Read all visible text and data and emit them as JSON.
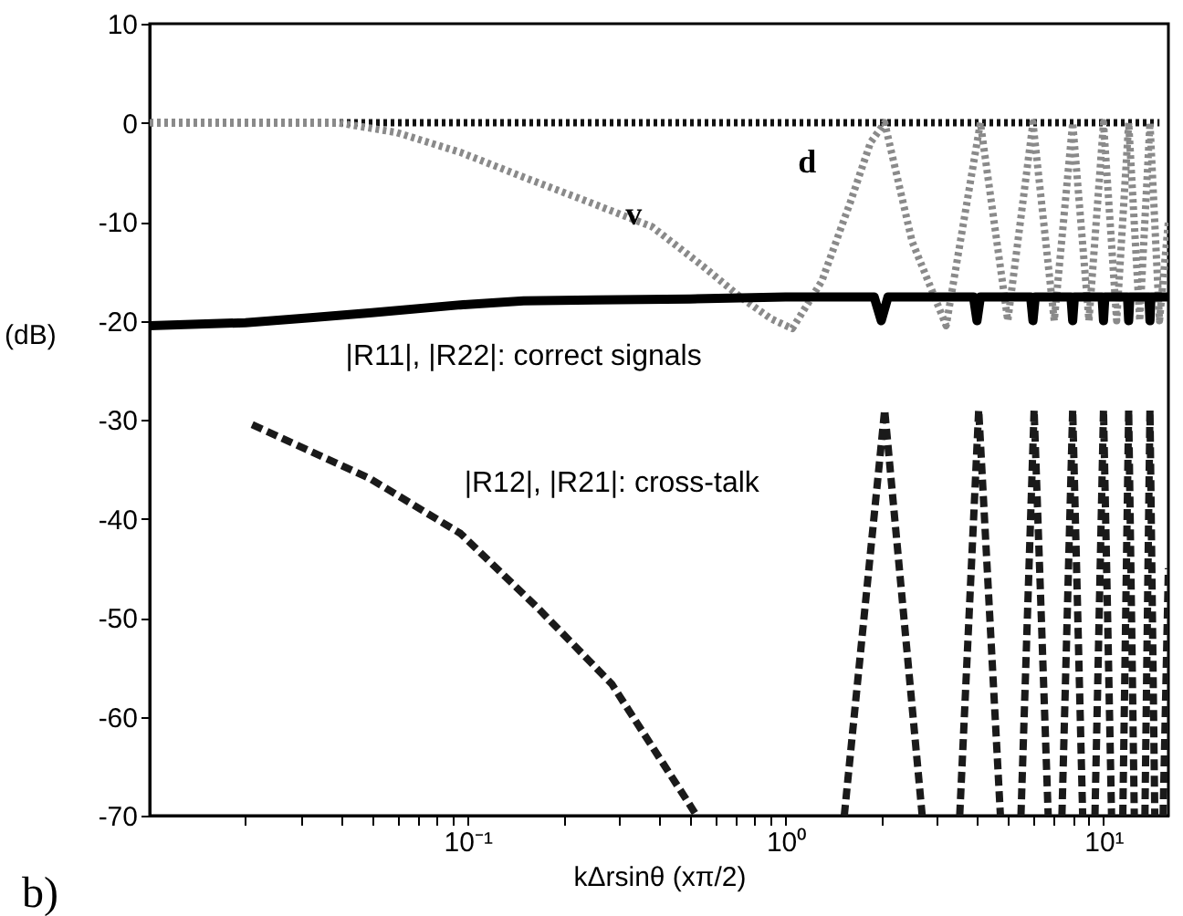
{
  "chart_data": {
    "type": "line",
    "xlabel": "kΔrsinθ (xπ/2)",
    "ylabel": "(dB)",
    "log": "x",
    "grid": false,
    "marker": "none",
    "xlim": [
      0.01,
      16
    ],
    "ylim": [
      -70,
      10
    ],
    "xticks": [
      {
        "value": 0.02,
        "label": null
      },
      {
        "value": 0.03,
        "label": null
      },
      {
        "value": 0.04,
        "label": null
      },
      {
        "value": 0.05,
        "label": null
      },
      {
        "value": 0.06,
        "label": null
      },
      {
        "value": 0.07,
        "label": null
      },
      {
        "value": 0.08,
        "label": null
      },
      {
        "value": 0.09,
        "label": null
      },
      {
        "value": 0.1,
        "label": "10⁻¹"
      },
      {
        "value": 0.2,
        "label": null
      },
      {
        "value": 0.3,
        "label": null
      },
      {
        "value": 0.4,
        "label": null
      },
      {
        "value": 0.5,
        "label": null
      },
      {
        "value": 0.6,
        "label": null
      },
      {
        "value": 0.7,
        "label": null
      },
      {
        "value": 0.8,
        "label": null
      },
      {
        "value": 0.9,
        "label": null
      },
      {
        "value": 1,
        "label": "10⁰"
      },
      {
        "value": 2,
        "label": null
      },
      {
        "value": 3,
        "label": null
      },
      {
        "value": 4,
        "label": null
      },
      {
        "value": 5,
        "label": null
      },
      {
        "value": 6,
        "label": null
      },
      {
        "value": 7,
        "label": null
      },
      {
        "value": 8,
        "label": null
      },
      {
        "value": 9,
        "label": null
      },
      {
        "value": 10,
        "label": "10¹"
      }
    ],
    "yticks": [
      -70,
      -60,
      -50,
      -40,
      -30,
      -20,
      -10,
      0,
      10
    ],
    "series": [
      {
        "name": "d",
        "color": "#111111",
        "line_style": "dotted",
        "x": [
          0.01,
          0.1,
          1,
          1.17,
          15
        ],
        "values": [
          0,
          0,
          0,
          0,
          0
        ]
      },
      {
        "name": "v",
        "color": "#8a8a8a",
        "line_style": "dotted",
        "x": [
          0.01,
          0.039,
          0.06,
          0.095,
          0.15,
          0.24,
          0.38,
          0.55,
          0.72,
          0.9,
          1.05,
          1.3,
          1.6,
          1.85,
          2.05,
          2.5,
          3.2,
          4.1,
          5,
          6,
          7,
          8,
          9,
          10,
          11,
          12,
          13,
          14,
          15,
          16
        ],
        "values": [
          0,
          0,
          -1,
          -3,
          -5.5,
          -8,
          -10.5,
          -14.5,
          -17.6,
          -19.8,
          -20.8,
          -16,
          -8,
          -2,
          0,
          -12,
          -20.5,
          0,
          -20,
          0,
          -20,
          0,
          -20,
          0,
          -20,
          0,
          -20,
          0,
          -20,
          -10
        ]
      },
      {
        "name": "|R11|, |R22|: correct signals",
        "color": "#000000",
        "line_style": "solid",
        "x": [
          0.01,
          0.02,
          0.032,
          0.05,
          0.095,
          0.15,
          0.25,
          0.5,
          1,
          1.9,
          2,
          2.1,
          3.9,
          4,
          4.1,
          5.9,
          6,
          6.1,
          7.9,
          8,
          8.1,
          9.9,
          10,
          10.1,
          11.9,
          12,
          12.1,
          13.9,
          14,
          14.1,
          16
        ],
        "values": [
          -20.5,
          -20.2,
          -19.7,
          -19.2,
          -18.4,
          -18,
          -17.9,
          -17.8,
          -17.6,
          -17.6,
          -20,
          -17.6,
          -17.6,
          -20,
          -17.6,
          -17.6,
          -20,
          -17.6,
          -17.6,
          -20,
          -17.6,
          -17.6,
          -20,
          -17.6,
          -17.6,
          -20,
          -17.6,
          -17.6,
          -20,
          -17.6,
          -17.6
        ]
      },
      {
        "name": "|R12|, |R21|: cross-talk",
        "color": "#1a1a1a",
        "line_style": "dashed",
        "x": [
          0.021,
          0.049,
          0.095,
          0.166,
          0.284,
          0.495,
          0.525,
          1,
          1.53,
          2.05,
          2.69,
          3,
          3.53,
          4.05,
          4.74,
          5,
          5.5,
          6.05,
          6.7,
          7,
          7.4,
          8,
          8.6,
          9,
          9.4,
          10,
          10.6,
          11,
          11.5,
          12,
          12.5,
          13,
          13.5,
          14,
          14.5,
          15,
          15.4,
          16
        ],
        "values": [
          -30.5,
          -35.9,
          -41.5,
          -49,
          -56.7,
          -68.7,
          -70,
          null,
          -70,
          -29,
          -70,
          null,
          -70,
          -29,
          -70,
          null,
          -70,
          -29,
          -70,
          null,
          -70,
          -29,
          -70,
          null,
          -70,
          -29,
          -70,
          null,
          -70,
          -29,
          -70,
          null,
          -70,
          -29,
          -70,
          null,
          -70,
          -45
        ]
      }
    ],
    "annotations": [
      "b)"
    ]
  }
}
